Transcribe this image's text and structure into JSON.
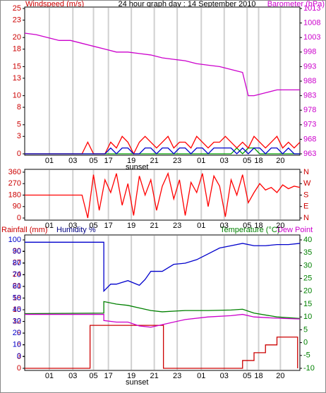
{
  "chart_data": [
    {
      "type": "line",
      "title": "24 hour graph day : 14 September 2010",
      "ylabel": "Windspeed (m/s)",
      "y2label": "Barometer (hPa)",
      "xlim": [
        0,
        24
      ],
      "xticks": [
        {
          "value": 2.15,
          "label": "01"
        },
        {
          "value": 4.2,
          "label": "03"
        },
        {
          "value": 6.0,
          "label": "05"
        },
        {
          "value": 7.3,
          "label": "17"
        },
        {
          "value": 9.3,
          "label": "19"
        },
        {
          "value": 11.3,
          "label": "21"
        },
        {
          "value": 13.3,
          "label": "23"
        },
        {
          "value": 15.4,
          "label": "01"
        },
        {
          "value": 17.4,
          "label": "03"
        },
        {
          "value": 19.4,
          "label": "05"
        },
        {
          "value": 20.4,
          "label": "18"
        },
        {
          "value": 22.3,
          "label": "20"
        }
      ],
      "grid": true,
      "ycolor": "#cc0000",
      "y2color": "#cc00cc",
      "ylim": [
        0,
        25
      ],
      "yticks": [
        0,
        3,
        5,
        8,
        10,
        13,
        15,
        18,
        20,
        23,
        25
      ],
      "y2lim": [
        963,
        1013
      ],
      "y2ticks": [
        963,
        968,
        973,
        978,
        983,
        988,
        993,
        998,
        1003,
        1008,
        1013
      ],
      "annotations": [
        {
          "text": "sunset",
          "x": 9.8
        }
      ],
      "x": [
        0,
        0.5,
        1,
        1.5,
        2,
        2.5,
        3,
        3.5,
        4,
        4.5,
        5,
        5.5,
        6,
        6.5,
        7,
        7.5,
        8,
        8.5,
        9,
        9.5,
        10,
        10.5,
        11,
        11.5,
        12,
        12.5,
        13,
        13.5,
        14,
        14.5,
        15,
        15.5,
        16,
        16.5,
        17,
        17.5,
        18,
        18.5,
        19,
        19.5,
        20,
        20.5,
        21,
        21.5,
        22,
        22.5,
        23,
        23.5,
        24
      ],
      "series": [
        {
          "color": "#00a000",
          "values": [
            0,
            0,
            0,
            0,
            0,
            0,
            0,
            0,
            0,
            0,
            0,
            0,
            0,
            0,
            0,
            0,
            0,
            0,
            0,
            0,
            0,
            0,
            0,
            0,
            0,
            0,
            0,
            0,
            0,
            0,
            0,
            0,
            0,
            0,
            0,
            0,
            0,
            1,
            0,
            1,
            1,
            0,
            0,
            0,
            0,
            0,
            0,
            0,
            0
          ]
        },
        {
          "color": "#ff0000",
          "values": [
            0,
            0,
            0,
            0,
            0,
            0,
            0,
            0,
            0,
            0,
            0,
            2,
            0,
            0,
            0,
            2,
            1,
            3,
            2,
            0,
            2,
            3,
            2,
            1,
            2,
            3,
            1,
            2,
            2,
            1,
            3,
            2,
            1,
            2,
            2,
            3,
            2,
            1,
            2,
            1,
            3,
            2,
            1,
            2,
            3,
            1,
            2,
            1,
            2
          ]
        },
        {
          "color": "#0000cc",
          "values": [
            0,
            0,
            0,
            0,
            0,
            0,
            0,
            0,
            0,
            0,
            0,
            0,
            0,
            0,
            0,
            1,
            0,
            1,
            1,
            0,
            0,
            1,
            1,
            0,
            1,
            1,
            0,
            1,
            1,
            0,
            1,
            1,
            0,
            1,
            1,
            1,
            1,
            0,
            1,
            0,
            1,
            1,
            0,
            1,
            1,
            0,
            1,
            0,
            0
          ]
        },
        {
          "color": "#cc00cc",
          "axis": "y2",
          "x": [
            0,
            1,
            2,
            3,
            4,
            5,
            6,
            7,
            8,
            9,
            10,
            11,
            12,
            13,
            14,
            15,
            16,
            17,
            18,
            19,
            19.5,
            20,
            21,
            22,
            23,
            24
          ],
          "values": [
            1004.5,
            1004,
            1003,
            1002,
            1002,
            1001,
            1000,
            999,
            998,
            998,
            997.5,
            997,
            996,
            995.5,
            995,
            994,
            993.5,
            993,
            992,
            991,
            983,
            983,
            984,
            985,
            985,
            985
          ]
        }
      ]
    },
    {
      "type": "line",
      "xlim": [
        0,
        24
      ],
      "grid": true,
      "ycolor": "#cc0000",
      "y2color": "#cc0000",
      "xticks": [
        {
          "value": 2.15,
          "label": "01"
        },
        {
          "value": 4.2,
          "label": "03"
        },
        {
          "value": 6.0,
          "label": "05"
        },
        {
          "value": 7.3,
          "label": "17"
        },
        {
          "value": 9.3,
          "label": "19"
        },
        {
          "value": 11.3,
          "label": "21"
        },
        {
          "value": 13.3,
          "label": "23"
        },
        {
          "value": 15.4,
          "label": "01"
        },
        {
          "value": 17.4,
          "label": "03"
        },
        {
          "value": 19.4,
          "label": "05"
        },
        {
          "value": 20.4,
          "label": "18"
        },
        {
          "value": 22.3,
          "label": "20"
        }
      ],
      "ylim": [
        0,
        360
      ],
      "yticks": [
        0,
        90,
        180,
        270,
        360
      ],
      "y2lim": [
        0,
        360
      ],
      "y2ticks": [
        {
          "value": 0,
          "label": "N"
        },
        {
          "value": 90,
          "label": "E"
        },
        {
          "value": 180,
          "label": "S"
        },
        {
          "value": 270,
          "label": "W"
        },
        {
          "value": 360,
          "label": "N"
        }
      ],
      "x": [
        0,
        0.5,
        1,
        1.5,
        2,
        2.5,
        3,
        3.5,
        4,
        4.5,
        5,
        5.5,
        6,
        6.5,
        7,
        7.5,
        8,
        8.5,
        9,
        9.5,
        10,
        10.5,
        11,
        11.5,
        12,
        12.5,
        13,
        13.5,
        14,
        14.5,
        15,
        15.5,
        16,
        16.5,
        17,
        17.5,
        18,
        18.5,
        19,
        19.5,
        20,
        20.5,
        21,
        21.5,
        22,
        22.5,
        23,
        23.5,
        24
      ],
      "series": [
        {
          "color": "#ff0000",
          "values": [
            180,
            180,
            180,
            180,
            180,
            180,
            180,
            180,
            180,
            180,
            180,
            0,
            340,
            60,
            300,
            200,
            350,
            100,
            270,
            20,
            330,
            180,
            300,
            60,
            250,
            350,
            150,
            300,
            20,
            280,
            200,
            350,
            90,
            330,
            250,
            10,
            300,
            180,
            340,
            120,
            200,
            270,
            220,
            240,
            200,
            260,
            230,
            250,
            240
          ]
        }
      ]
    },
    {
      "type": "line",
      "ylabel": "Rainfall (mm)",
      "y3label": "Humidity %",
      "y2label": "Temperature (°C)",
      "y4label": "Dew Point",
      "xlim": [
        0,
        24
      ],
      "grid": true,
      "ycolor": "#cc0000",
      "y2color": "#008000",
      "y3color": "#0000cc",
      "xticks": [
        {
          "value": 2.15,
          "label": "01"
        },
        {
          "value": 4.2,
          "label": "03"
        },
        {
          "value": 6.0,
          "label": "05"
        },
        {
          "value": 7.3,
          "label": "17"
        },
        {
          "value": 9.3,
          "label": "19"
        },
        {
          "value": 11.3,
          "label": "21"
        },
        {
          "value": 13.3,
          "label": "23"
        },
        {
          "value": 15.4,
          "label": "01"
        },
        {
          "value": 17.4,
          "label": "03"
        },
        {
          "value": 19.4,
          "label": "05"
        },
        {
          "value": 20.4,
          "label": "18"
        },
        {
          "value": 22.3,
          "label": "20"
        }
      ],
      "ylim": [
        0,
        30
      ],
      "yticks": [
        0,
        3,
        6,
        9,
        12,
        15,
        18,
        21,
        24,
        27,
        30
      ],
      "y3lim": [
        0,
        100
      ],
      "y3ticks": [
        0,
        10,
        20,
        30,
        40,
        50,
        60,
        70,
        80,
        90,
        100
      ],
      "y2lim": [
        -10,
        40
      ],
      "y2ticks": [
        -10,
        -5,
        0,
        5,
        10,
        15,
        20,
        25,
        30,
        35,
        40
      ],
      "annotations": [
        {
          "text": "sunset",
          "x": 9.8
        }
      ],
      "series": [
        {
          "color": "#0000cc",
          "axis": "y3",
          "x": [
            0,
            6.9,
            6.9,
            7.5,
            8,
            9,
            10,
            10.5,
            11,
            12,
            13,
            14,
            15,
            16,
            17,
            18,
            19,
            20,
            21,
            22,
            23,
            24
          ],
          "values": [
            98,
            98,
            56,
            62,
            62,
            65,
            61,
            66,
            73,
            73,
            79,
            80,
            83,
            88,
            93,
            95,
            97,
            95,
            95,
            96,
            96,
            97
          ]
        },
        {
          "color": "#cc0000",
          "x": [
            0,
            5.7,
            5.7,
            12.1,
            12.1,
            19,
            19,
            20,
            20,
            21,
            21,
            22,
            22,
            23.8,
            23.8
          ],
          "values": [
            0,
            0,
            11,
            11,
            0,
            0,
            2,
            2,
            4,
            4,
            6,
            6,
            8,
            8,
            0
          ]
        },
        {
          "color": "#008000",
          "axis": "y2",
          "x": [
            0,
            6.9,
            6.9,
            8,
            9,
            10,
            11,
            12,
            14,
            16,
            18,
            19,
            20,
            22,
            24
          ],
          "values": [
            11.3,
            11.5,
            16,
            15,
            14.5,
            13.5,
            12.5,
            12,
            12.5,
            12.5,
            12.7,
            13,
            11.5,
            10,
            9.4
          ]
        },
        {
          "color": "#cc00cc",
          "axis": "y2",
          "x": [
            0,
            6.9,
            6.9,
            8,
            9,
            10,
            11,
            12,
            14,
            16,
            18,
            19,
            20,
            22,
            24
          ],
          "values": [
            11,
            11,
            8.6,
            8,
            8,
            6.5,
            6,
            7,
            9,
            10,
            10.5,
            11,
            10,
            9.5,
            9.2
          ]
        }
      ]
    }
  ]
}
